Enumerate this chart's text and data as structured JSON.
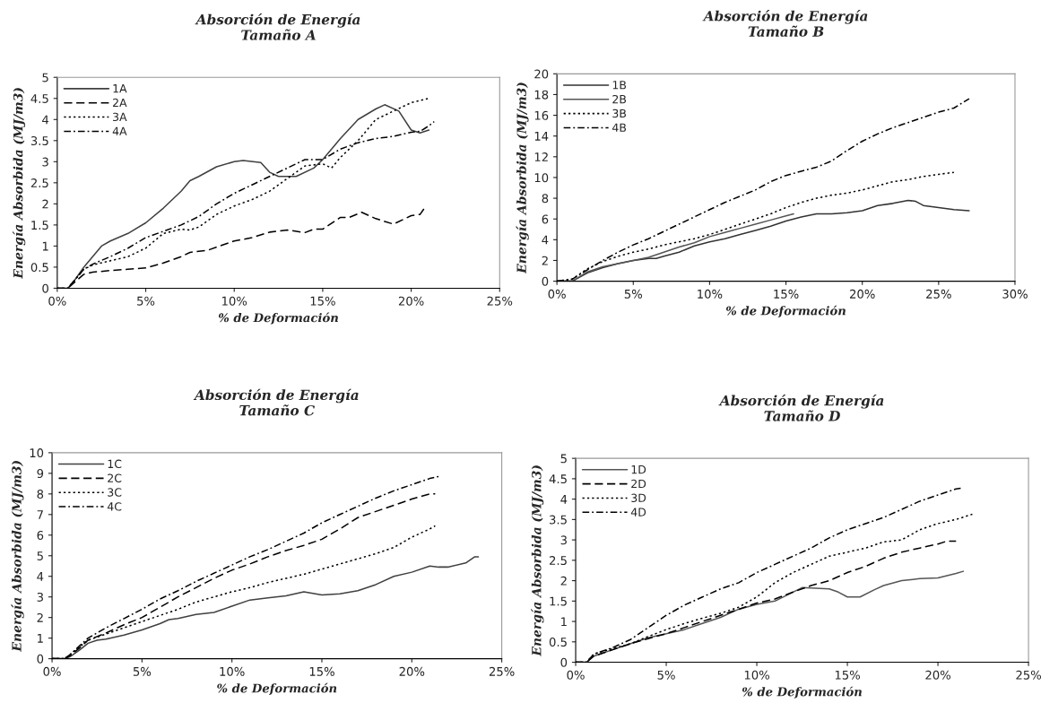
{
  "chart_data": [
    {
      "type": "line",
      "title": "Absorción de Energía\nTamaño A",
      "xlabel": "% de Deformación",
      "ylabel": "Energía Absorbida (MJ/m3)",
      "xlim": [
        0,
        25
      ],
      "xticks": [
        {
          "value": 0,
          "label": "0%"
        },
        {
          "value": 5,
          "label": "5%"
        },
        {
          "value": 10,
          "label": "10%"
        },
        {
          "value": 15,
          "label": "15%"
        },
        {
          "value": 20,
          "label": "20%"
        },
        {
          "value": 25,
          "label": "25%"
        }
      ],
      "ylim": [
        0,
        5
      ],
      "yticks": [
        0,
        0.5,
        1,
        1.5,
        2,
        2.5,
        3,
        3.5,
        4,
        4.5,
        5
      ],
      "grid": false,
      "legend": "top left",
      "marker": "none",
      "series": [
        {
          "name": "1A",
          "color": "#404040",
          "line_style": "solid",
          "x": [
            0,
            0.6,
            1,
            1.5,
            2,
            2.5,
            3,
            4,
            5,
            6,
            7,
            7.5,
            8,
            9,
            10,
            10.5,
            11.5,
            12,
            12.5,
            13.5,
            14.5,
            15,
            16,
            17,
            18,
            18.5,
            19.3,
            20,
            20.5,
            21
          ],
          "values": [
            0,
            0,
            0.2,
            0.5,
            0.75,
            1.0,
            1.12,
            1.3,
            1.55,
            1.9,
            2.3,
            2.55,
            2.65,
            2.88,
            3.0,
            3.03,
            2.98,
            2.75,
            2.65,
            2.65,
            2.85,
            3.05,
            3.55,
            4.0,
            4.25,
            4.35,
            4.2,
            3.75,
            3.68,
            3.75
          ]
        },
        {
          "name": "2A",
          "color": "#000000",
          "line_style": "dashed",
          "x": [
            0,
            0.6,
            1,
            1.5,
            2,
            3,
            4,
            5,
            6,
            7,
            7.5,
            8.5,
            10,
            11,
            12,
            13,
            14,
            14.5,
            15,
            16,
            16.5,
            17.2,
            18,
            19,
            20,
            20.5,
            20.8
          ],
          "values": [
            0,
            0,
            0.15,
            0.33,
            0.38,
            0.42,
            0.45,
            0.48,
            0.6,
            0.75,
            0.85,
            0.9,
            1.12,
            1.2,
            1.33,
            1.38,
            1.32,
            1.4,
            1.4,
            1.68,
            1.68,
            1.8,
            1.65,
            1.52,
            1.72,
            1.75,
            1.93
          ]
        },
        {
          "name": "3A",
          "color": "#000000",
          "line_style": "dotted",
          "x": [
            0,
            0.6,
            1,
            1.5,
            2,
            3,
            4,
            5,
            6,
            7,
            7.5,
            8,
            9,
            10,
            11,
            12,
            13,
            14,
            15,
            15.5,
            16,
            17,
            18,
            19,
            20,
            21
          ],
          "values": [
            0,
            0,
            0.2,
            0.45,
            0.55,
            0.65,
            0.75,
            0.95,
            1.3,
            1.4,
            1.38,
            1.45,
            1.75,
            1.95,
            2.1,
            2.3,
            2.6,
            2.9,
            2.95,
            2.85,
            3.1,
            3.5,
            4.0,
            4.2,
            4.4,
            4.5
          ]
        },
        {
          "name": "4A",
          "color": "#000000",
          "line_style": "dashdot",
          "x": [
            0,
            0.6,
            1,
            1.5,
            2,
            3,
            4,
            5,
            6,
            7,
            8,
            9,
            10,
            11,
            12,
            13,
            14,
            15,
            16,
            17,
            18,
            19,
            20,
            20.5,
            21,
            21.3
          ],
          "values": [
            0,
            0,
            0.2,
            0.45,
            0.57,
            0.75,
            0.95,
            1.2,
            1.35,
            1.5,
            1.7,
            2.0,
            2.25,
            2.45,
            2.65,
            2.85,
            3.05,
            3.05,
            3.3,
            3.45,
            3.55,
            3.6,
            3.7,
            3.72,
            3.85,
            3.95
          ]
        }
      ]
    },
    {
      "type": "line",
      "title": "Absorción de Energía\nTamaño B",
      "xlabel": "% de Deformación",
      "ylabel": "Energía Absorbida (MJ/m3)",
      "xlim": [
        0,
        30
      ],
      "xticks": [
        {
          "value": 0,
          "label": "0%"
        },
        {
          "value": 5,
          "label": "5%"
        },
        {
          "value": 10,
          "label": "10%"
        },
        {
          "value": 15,
          "label": "15%"
        },
        {
          "value": 20,
          "label": "20%"
        },
        {
          "value": 25,
          "label": "25%"
        },
        {
          "value": 30,
          "label": "30%"
        }
      ],
      "ylim": [
        0,
        20
      ],
      "yticks": [
        0,
        2,
        4,
        6,
        8,
        10,
        12,
        14,
        16,
        18,
        20
      ],
      "grid": false,
      "legend": "top left",
      "marker": "none",
      "series": [
        {
          "name": "1B",
          "color": "#333333",
          "line_style": "solid",
          "x": [
            0,
            1,
            2,
            3,
            4,
            5,
            6,
            6.5,
            7,
            8,
            9,
            10,
            11,
            12,
            13,
            14,
            15,
            16,
            17,
            18,
            19,
            20,
            21,
            22,
            23,
            23.5,
            24,
            25,
            26,
            27
          ],
          "values": [
            0,
            0,
            0.8,
            1.3,
            1.7,
            2.0,
            2.2,
            2.2,
            2.4,
            2.8,
            3.4,
            3.8,
            4.1,
            4.5,
            4.9,
            5.3,
            5.8,
            6.2,
            6.5,
            6.5,
            6.6,
            6.8,
            7.3,
            7.5,
            7.8,
            7.7,
            7.3,
            7.1,
            6.9,
            6.8
          ]
        },
        {
          "name": "2B",
          "color": "#555555",
          "line_style": "solid",
          "x": [
            0,
            1,
            2,
            3,
            4,
            5,
            6,
            7,
            8,
            9,
            10,
            11,
            12,
            13,
            14,
            15,
            15.5
          ],
          "values": [
            0,
            0,
            0.9,
            1.4,
            1.7,
            2.0,
            2.3,
            2.8,
            3.3,
            3.7,
            4.3,
            4.7,
            5.1,
            5.5,
            5.9,
            6.3,
            6.5
          ]
        },
        {
          "name": "3B",
          "color": "#000000",
          "line_style": "dotted",
          "x": [
            0,
            1,
            2,
            3,
            4,
            5,
            6,
            7,
            8,
            9,
            10,
            11,
            12,
            13,
            14,
            15,
            16,
            17,
            18,
            19,
            20,
            21,
            22,
            23,
            24,
            25,
            26
          ],
          "values": [
            0,
            0.2,
            1.2,
            1.9,
            2.4,
            2.8,
            3.1,
            3.5,
            3.8,
            4.1,
            4.5,
            5.0,
            5.5,
            6.0,
            6.5,
            7.1,
            7.6,
            8.0,
            8.3,
            8.5,
            8.8,
            9.2,
            9.6,
            9.8,
            10.1,
            10.3,
            10.5
          ]
        },
        {
          "name": "4B",
          "color": "#000000",
          "line_style": "dashdot",
          "x": [
            0,
            1,
            2,
            3,
            4,
            5,
            6,
            7,
            8,
            9,
            10,
            11,
            12,
            13,
            14,
            15,
            16,
            17,
            18,
            19,
            20,
            21,
            22,
            23,
            24,
            25,
            26,
            27
          ],
          "values": [
            0,
            0.2,
            1.1,
            2.0,
            2.8,
            3.5,
            4.1,
            4.8,
            5.5,
            6.2,
            6.9,
            7.6,
            8.2,
            8.8,
            9.6,
            10.2,
            10.6,
            11.0,
            11.6,
            12.6,
            13.5,
            14.2,
            14.8,
            15.3,
            15.8,
            16.3,
            16.7,
            17.6
          ]
        }
      ]
    },
    {
      "type": "line",
      "title": "Absorción de Energía\nTamaño C",
      "xlabel": "% de Deformación",
      "ylabel": "Energía Absorbida (MJ/m3)",
      "xlim": [
        0,
        25
      ],
      "xticks": [
        {
          "value": 0,
          "label": "0%"
        },
        {
          "value": 5,
          "label": "5%"
        },
        {
          "value": 10,
          "label": "10%"
        },
        {
          "value": 15,
          "label": "15%"
        },
        {
          "value": 20,
          "label": "20%"
        },
        {
          "value": 25,
          "label": "25%"
        }
      ],
      "ylim": [
        0,
        10
      ],
      "yticks": [
        0,
        1,
        2,
        3,
        4,
        5,
        6,
        7,
        8,
        9,
        10
      ],
      "grid": false,
      "legend": "top left",
      "marker": "none",
      "series": [
        {
          "name": "1C",
          "color": "#404040",
          "line_style": "solid",
          "x": [
            0,
            0.7,
            1,
            1.5,
            2,
            2.5,
            3,
            4,
            5,
            6,
            6.5,
            7,
            8,
            9,
            10,
            11,
            12,
            13,
            14,
            15,
            16,
            17,
            18,
            19,
            20,
            21,
            21.5,
            22,
            23,
            23.5,
            23.7
          ],
          "values": [
            0,
            0,
            0.1,
            0.4,
            0.75,
            0.9,
            0.95,
            1.15,
            1.4,
            1.7,
            1.9,
            1.95,
            2.15,
            2.25,
            2.55,
            2.85,
            2.95,
            3.05,
            3.25,
            3.1,
            3.15,
            3.3,
            3.6,
            4.0,
            4.2,
            4.5,
            4.45,
            4.45,
            4.65,
            4.95,
            4.95
          ]
        },
        {
          "name": "2C",
          "color": "#000000",
          "line_style": "dashed",
          "x": [
            0,
            0.7,
            1,
            1.5,
            2,
            3,
            4,
            5,
            6,
            7,
            8,
            9,
            10,
            11,
            12,
            13,
            14,
            15,
            16,
            17,
            18,
            19,
            20,
            21,
            21.3
          ],
          "values": [
            0,
            0,
            0.15,
            0.5,
            0.9,
            1.25,
            1.65,
            2.0,
            2.5,
            3.0,
            3.45,
            3.9,
            4.3,
            4.6,
            4.95,
            5.25,
            5.5,
            5.8,
            6.3,
            6.85,
            7.15,
            7.45,
            7.75,
            8.0,
            8.0
          ]
        },
        {
          "name": "3C",
          "color": "#000000",
          "line_style": "dotted",
          "x": [
            0,
            0.7,
            1,
            2,
            3,
            4,
            5,
            6,
            7,
            8,
            9,
            10,
            11,
            12,
            13,
            14,
            15,
            16,
            17,
            18,
            19,
            20,
            21,
            21.3
          ],
          "values": [
            0,
            0,
            0.2,
            0.9,
            1.2,
            1.5,
            1.8,
            2.1,
            2.4,
            2.75,
            3.0,
            3.25,
            3.45,
            3.7,
            3.9,
            4.1,
            4.35,
            4.6,
            4.85,
            5.1,
            5.4,
            5.9,
            6.3,
            6.45
          ]
        },
        {
          "name": "4C",
          "color": "#000000",
          "line_style": "dashdot",
          "x": [
            0,
            0.7,
            1,
            2,
            3,
            4,
            5,
            6,
            7,
            8,
            9,
            10,
            11,
            12,
            13,
            14,
            15,
            16,
            17,
            18,
            19,
            20,
            21,
            21.5
          ],
          "values": [
            0,
            0,
            0.2,
            1.0,
            1.5,
            1.95,
            2.4,
            2.9,
            3.3,
            3.75,
            4.15,
            4.55,
            4.95,
            5.3,
            5.7,
            6.1,
            6.6,
            7.0,
            7.4,
            7.8,
            8.15,
            8.45,
            8.75,
            8.85
          ]
        }
      ]
    },
    {
      "type": "line",
      "title": "Absorción de Energía\nTamaño D",
      "xlabel": "% de Deformación",
      "ylabel": "Energía Absorbida (MJ/m3)",
      "xlim": [
        0,
        25
      ],
      "xticks": [
        {
          "value": 0,
          "label": "0%"
        },
        {
          "value": 5,
          "label": "5%"
        },
        {
          "value": 10,
          "label": "10%"
        },
        {
          "value": 15,
          "label": "15%"
        },
        {
          "value": 20,
          "label": "20%"
        },
        {
          "value": 25,
          "label": "25%"
        }
      ],
      "ylim": [
        0,
        5
      ],
      "yticks": [
        0,
        0.5,
        1,
        1.5,
        2,
        2.5,
        3,
        3.5,
        4,
        4.5,
        5
      ],
      "grid": false,
      "legend": "top left",
      "marker": "none",
      "series": [
        {
          "name": "1D",
          "color": "#555555",
          "line_style": "solid",
          "x": [
            0,
            0.6,
            1,
            2,
            3,
            4,
            5,
            6,
            7,
            8,
            9,
            10,
            11,
            12,
            12.5,
            13,
            14,
            14.5,
            15,
            15.7,
            16.5,
            17,
            18,
            19,
            20,
            21,
            21.4
          ],
          "values": [
            0,
            0,
            0.15,
            0.3,
            0.45,
            0.6,
            0.7,
            0.8,
            0.95,
            1.1,
            1.3,
            1.42,
            1.5,
            1.72,
            1.83,
            1.82,
            1.8,
            1.72,
            1.6,
            1.6,
            1.78,
            1.88,
            2.0,
            2.05,
            2.07,
            2.18,
            2.23
          ]
        },
        {
          "name": "2D",
          "color": "#000000",
          "line_style": "dashed",
          "x": [
            0,
            0.6,
            1,
            2,
            3,
            4,
            5,
            6,
            7,
            8,
            9,
            10,
            11,
            12,
            13,
            14,
            15,
            16,
            17,
            18,
            19,
            20,
            20.5,
            21
          ],
          "values": [
            0,
            0,
            0.15,
            0.3,
            0.45,
            0.58,
            0.7,
            0.85,
            1.0,
            1.15,
            1.3,
            1.45,
            1.55,
            1.72,
            1.88,
            2.0,
            2.2,
            2.35,
            2.55,
            2.7,
            2.8,
            2.9,
            2.97,
            2.97
          ]
        },
        {
          "name": "3D",
          "color": "#000000",
          "line_style": "dotted",
          "x": [
            0,
            0.6,
            1,
            2,
            3,
            4,
            5,
            6,
            7,
            8,
            9,
            10,
            11,
            12,
            13,
            14,
            15,
            16,
            17,
            18,
            19,
            20,
            21,
            21.9
          ],
          "values": [
            0,
            0,
            0.2,
            0.33,
            0.45,
            0.63,
            0.8,
            0.95,
            1.08,
            1.2,
            1.35,
            1.6,
            1.95,
            2.2,
            2.4,
            2.6,
            2.7,
            2.8,
            2.95,
            3.0,
            3.25,
            3.4,
            3.5,
            3.63
          ]
        },
        {
          "name": "4D",
          "color": "#000000",
          "line_style": "dashdot",
          "x": [
            0,
            0.6,
            1,
            2,
            3,
            4,
            5,
            6,
            7,
            8,
            9,
            10,
            11,
            12,
            13,
            14,
            15,
            16,
            17,
            18,
            19,
            20,
            21,
            21.4
          ],
          "values": [
            0,
            0,
            0.2,
            0.35,
            0.55,
            0.85,
            1.15,
            1.4,
            1.6,
            1.8,
            1.95,
            2.2,
            2.4,
            2.6,
            2.8,
            3.05,
            3.25,
            3.4,
            3.55,
            3.75,
            3.95,
            4.1,
            4.25,
            4.28
          ]
        }
      ]
    }
  ]
}
